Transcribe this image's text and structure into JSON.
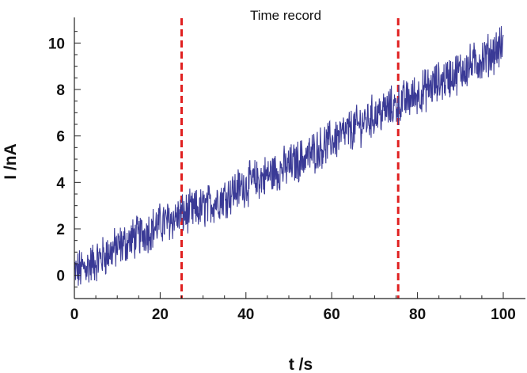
{
  "chart_data": {
    "type": "line",
    "title": "Time record",
    "xlabel": "t /s",
    "ylabel": "I /nA",
    "xlim": [
      0,
      100
    ],
    "ylim": [
      -1,
      11
    ],
    "x_ticks": [
      0,
      20,
      40,
      60,
      80,
      100
    ],
    "y_ticks": [
      0,
      2,
      4,
      6,
      8,
      10
    ],
    "grid": false,
    "legend": "none",
    "series": [
      {
        "color": "#3a3a96",
        "x": [
          0,
          5,
          10,
          15,
          20,
          25,
          30,
          35,
          40,
          45,
          50,
          55,
          60,
          65,
          70,
          75,
          80,
          85,
          90,
          95,
          100
        ],
        "y": [
          0.1,
          0.6,
          1.2,
          1.7,
          2.2,
          2.6,
          2.9,
          3.4,
          3.9,
          4.3,
          4.7,
          5.2,
          5.8,
          6.3,
          6.9,
          7.3,
          7.8,
          8.3,
          8.8,
          9.3,
          9.9
        ]
      }
    ],
    "reference_lines": [
      {
        "axis": "x",
        "value": 25,
        "color": "#e02020",
        "style": "dashed"
      },
      {
        "axis": "x",
        "value": 75.5,
        "color": "#e02020",
        "style": "dashed"
      }
    ]
  }
}
